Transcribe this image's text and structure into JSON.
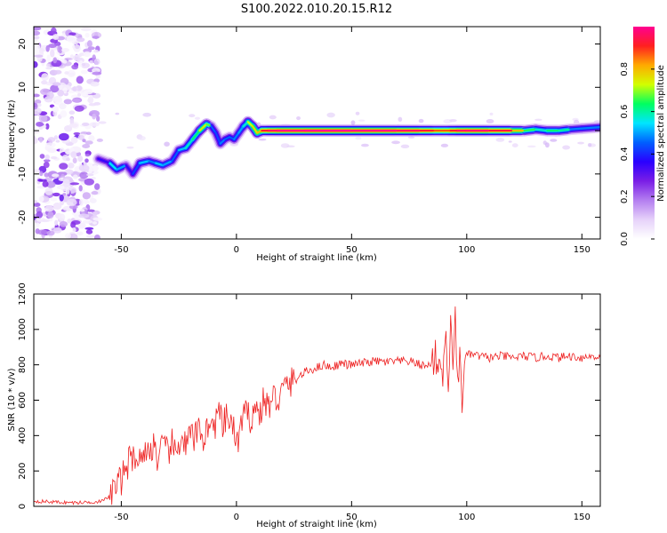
{
  "title": "S100.2022.010.20.15.R12",
  "chart_data": [
    {
      "type": "heatmap",
      "title": "S100.2022.010.20.15.R12",
      "xlabel": "Height of straight line (km)",
      "ylabel": "Frequency (Hz)",
      "xlim": [
        -88,
        158
      ],
      "ylim": [
        -25,
        24
      ],
      "xticks": [
        "-50",
        "0",
        "50",
        "100",
        "150"
      ],
      "yticks": [
        "-20",
        "-10",
        "0",
        "10",
        "20"
      ],
      "colorbar": {
        "label": "Normalized spectral amplitude",
        "range": [
          0,
          1
        ],
        "ticks": [
          "0.0",
          "0.2",
          "0.4",
          "0.6",
          "0.8"
        ],
        "colormap": [
          "#ffffff",
          "#e6d2fa",
          "#b47ef0",
          "#7a1ee6",
          "#2a00ff",
          "#0060ff",
          "#00e5ff",
          "#00ff60",
          "#d2ff00",
          "#ffaa00",
          "#ff2020",
          "#ff0090"
        ]
      },
      "noise_region": {
        "x_range": [
          -88,
          -60
        ],
        "y_range": [
          -25,
          24
        ]
      },
      "ridge": {
        "x": [
          -60,
          -55,
          -52,
          -48,
          -45,
          -42,
          -38,
          -35,
          -32,
          -28,
          -25,
          -22,
          -19,
          -16,
          -13,
          -11,
          -9,
          -7,
          -5,
          -3,
          -1,
          1,
          3,
          5,
          7,
          9,
          11,
          14,
          18,
          30,
          50,
          70,
          80,
          86,
          90,
          93,
          96,
          100,
          110,
          120,
          125,
          130,
          135,
          140,
          145,
          150,
          158
        ],
        "y": [
          -6.5,
          -7.5,
          -9,
          -8,
          -10,
          -7.5,
          -7,
          -7.5,
          -8,
          -7,
          -4.5,
          -4,
          -2,
          0,
          1.5,
          1,
          -0.5,
          -3,
          -2,
          -1.5,
          -2,
          -0.5,
          1,
          2,
          1,
          -0.5,
          0,
          0,
          0,
          0,
          0,
          0,
          0,
          0,
          0,
          0,
          0,
          0,
          0,
          0,
          0,
          0.3,
          0,
          0,
          0.3,
          0.5,
          0.8
        ],
        "amplitude": [
          0.2,
          0.5,
          0.6,
          0.4,
          0.3,
          0.55,
          0.5,
          0.45,
          0.6,
          0.4,
          0.5,
          0.55,
          0.6,
          0.65,
          0.85,
          0.5,
          0.4,
          0.45,
          0.5,
          0.4,
          0.5,
          0.45,
          0.55,
          0.6,
          0.85,
          0.7,
          0.9,
          0.95,
          0.98,
          1.0,
          1.0,
          0.98,
          0.95,
          0.9,
          0.85,
          0.9,
          0.95,
          0.98,
          0.97,
          0.9,
          0.7,
          0.6,
          0.55,
          0.7,
          0.5,
          0.45,
          0.5
        ]
      }
    },
    {
      "type": "line",
      "xlabel": "Height of straight line (km)",
      "ylabel": "SNR (10 * v/v)",
      "xlim": [
        -88,
        158
      ],
      "ylim": [
        0,
        1200
      ],
      "xticks": [
        "-50",
        "0",
        "50",
        "100",
        "150"
      ],
      "yticks": [
        "0",
        "200",
        "400",
        "600",
        "800",
        "1000",
        "1200"
      ],
      "color": "#ee2222",
      "x": [
        -88,
        -80,
        -70,
        -62,
        -58,
        -55,
        -52,
        -50,
        -48,
        -46,
        -44,
        -42,
        -40,
        -38,
        -36,
        -34,
        -32,
        -30,
        -28,
        -26,
        -24,
        -22,
        -20,
        -18,
        -16,
        -14,
        -12,
        -10,
        -8,
        -6,
        -4,
        -2,
        0,
        2,
        4,
        6,
        8,
        10,
        12,
        14,
        16,
        18,
        20,
        22,
        24,
        26,
        28,
        30,
        32,
        34,
        36,
        38,
        40,
        42,
        44,
        46,
        48,
        50,
        55,
        60,
        65,
        70,
        75,
        80,
        83,
        86,
        88,
        90,
        91,
        92,
        93,
        94,
        95,
        96,
        97,
        98,
        99,
        100,
        102,
        105,
        110,
        115,
        120,
        125,
        130,
        135,
        140,
        145,
        150,
        155,
        158
      ],
      "y": [
        30,
        25,
        20,
        25,
        30,
        60,
        120,
        150,
        230,
        260,
        300,
        250,
        330,
        280,
        370,
        250,
        340,
        300,
        350,
        280,
        420,
        330,
        400,
        380,
        460,
        370,
        490,
        420,
        540,
        450,
        500,
        480,
        340,
        460,
        520,
        500,
        560,
        520,
        600,
        560,
        620,
        600,
        650,
        690,
        700,
        720,
        740,
        760,
        770,
        780,
        790,
        800,
        790,
        790,
        800,
        810,
        800,
        800,
        810,
        820,
        815,
        820,
        820,
        800,
        790,
        840,
        820,
        760,
        950,
        700,
        1000,
        720,
        1200,
        640,
        850,
        620,
        830,
        850,
        860,
        850,
        840,
        850,
        840,
        850,
        840,
        850,
        840,
        850,
        840,
        850,
        840
      ]
    }
  ]
}
